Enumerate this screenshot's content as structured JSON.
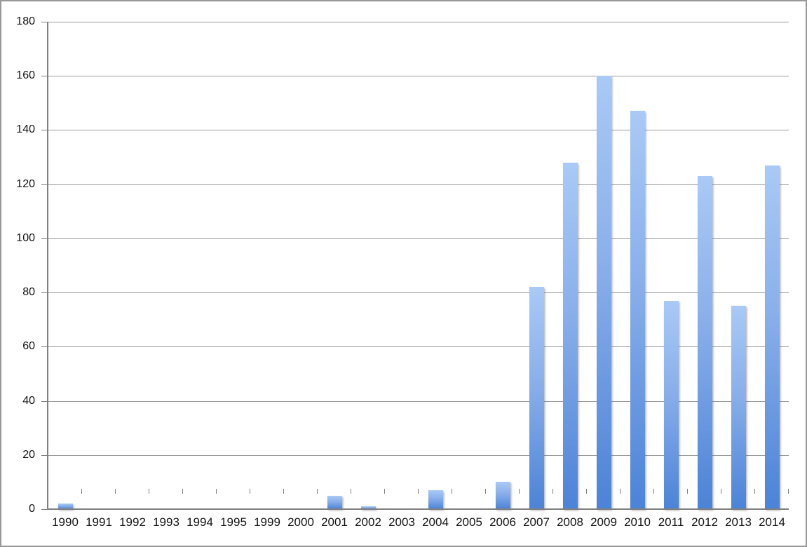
{
  "chart_data": {
    "type": "bar",
    "title": "",
    "xlabel": "",
    "ylabel": "",
    "categories": [
      "1990",
      "1991",
      "1992",
      "1993",
      "1994",
      "1995",
      "1999",
      "2000",
      "2001",
      "2002",
      "2003",
      "2004",
      "2005",
      "2006",
      "2007",
      "2008",
      "2009",
      "2010",
      "2011",
      "2012",
      "2013",
      "2014"
    ],
    "values": [
      2,
      0,
      0,
      0,
      0,
      0,
      0,
      0,
      5,
      1,
      0,
      7,
      0,
      10,
      82,
      128,
      160,
      147,
      77,
      123,
      75,
      127
    ],
    "ylim": [
      0,
      180
    ],
    "ytick_step": 20,
    "ytick_labels": [
      "0",
      "20",
      "40",
      "60",
      "80",
      "100",
      "120",
      "140",
      "160",
      "180"
    ],
    "grid": true,
    "legend": false,
    "colors": {
      "bar_gradient_top": "#a9caf6",
      "bar_gradient_bottom": "#4b83d7",
      "gridline": "#9b9b9b",
      "axis": "#7f7f7f",
      "text": "#141414",
      "frame_border": "#989898",
      "background": "#ffffff"
    }
  }
}
